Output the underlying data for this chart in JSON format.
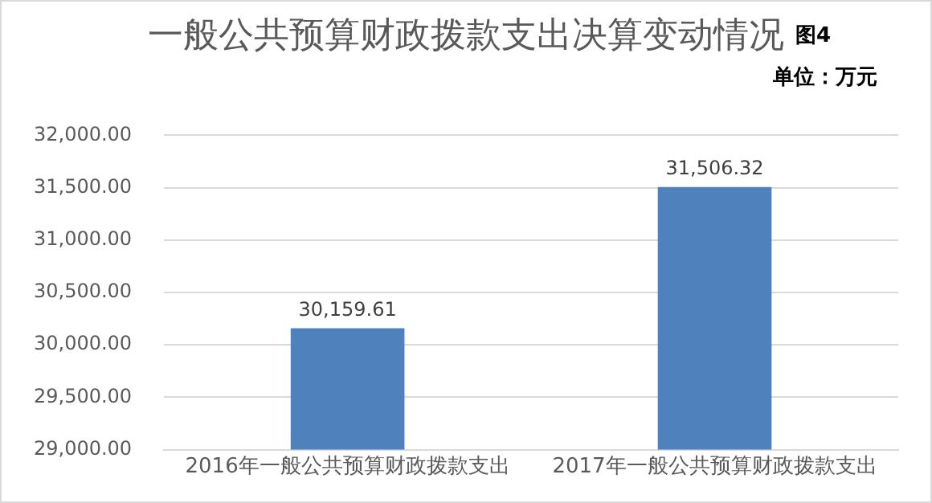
{
  "chart_data": {
    "type": "bar",
    "title": "一般公共预算财政拨款支出决算变动情况",
    "annotations": [
      "图4",
      "单位：万元"
    ],
    "categories": [
      "2016年一般公共预算财政拨款支出",
      "2017年一般公共预算财政拨款支出"
    ],
    "values": [
      30159.61,
      31506.32
    ],
    "color": "#4f81bd",
    "value_labels": [
      "30,159.61",
      "31,506.32"
    ],
    "ylim": [
      29000,
      32000
    ],
    "yticks": [
      {
        "value": 29000,
        "label": "29,000.00"
      },
      {
        "value": 29500,
        "label": "29,500.00"
      },
      {
        "value": 30000,
        "label": "30,000.00"
      },
      {
        "value": 30500,
        "label": "30,500.00"
      },
      {
        "value": 31000,
        "label": "31,000.00"
      },
      {
        "value": 31500,
        "label": "31,500.00"
      },
      {
        "value": 32000,
        "label": "32,000.00"
      }
    ],
    "grid": "y",
    "legend": false
  }
}
